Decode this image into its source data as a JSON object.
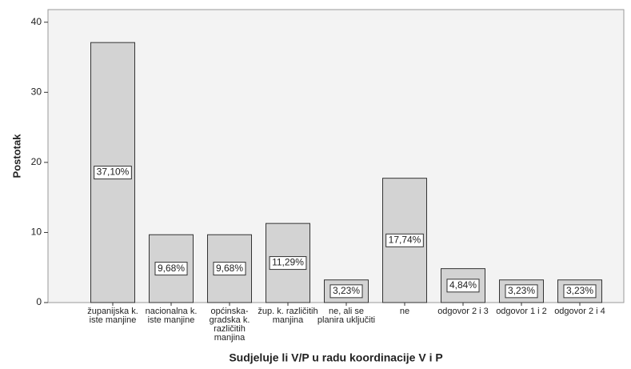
{
  "chart_data": {
    "type": "bar",
    "x_label": "Sudjeluje li V/P u radu koordinacije V i P",
    "y_label": "Postotak",
    "categories": [
      "županijska k. iste manjine",
      "nacionalna k. iste manjine",
      "općinska-gradska k. različitih manjina",
      "žup. k. različitih manjina",
      "ne, ali se planira uključiti",
      "ne",
      "odgovor 2 i 3",
      "odgovor 1 i 2",
      "odgovor 2 i 4"
    ],
    "values": [
      37.1,
      9.68,
      9.68,
      11.29,
      3.23,
      17.74,
      4.84,
      3.23,
      3.23
    ],
    "value_labels": [
      "37,10%",
      "9,68%",
      "9,68%",
      "11,29%",
      "3,23%",
      "17,74%",
      "4,84%",
      "3,23%",
      "3,23%"
    ],
    "color": "#d3d3d3",
    "ylim": [
      0,
      41.8
    ],
    "yticks": [
      0,
      10,
      20,
      30,
      40
    ]
  }
}
